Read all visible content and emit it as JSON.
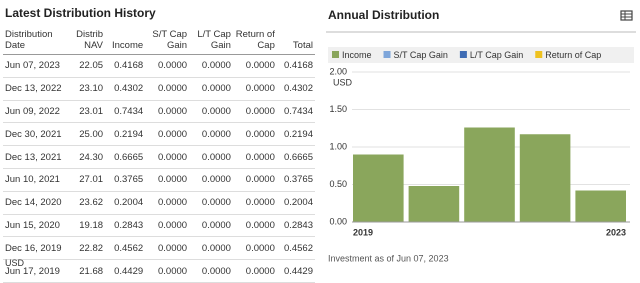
{
  "table": {
    "title": "Latest Distribution History",
    "headers": [
      "Distribution Date",
      "Distrib NAV",
      "Income",
      "S/T Cap Gain",
      "L/T Cap Gain",
      "Return of Cap",
      "Total"
    ],
    "rows": [
      [
        "Jun 07, 2023",
        "22.05",
        "0.4168",
        "0.0000",
        "0.0000",
        "0.0000",
        "0.4168"
      ],
      [
        "Dec 13, 2022",
        "23.10",
        "0.4302",
        "0.0000",
        "0.0000",
        "0.0000",
        "0.4302"
      ],
      [
        "Jun 09, 2022",
        "23.01",
        "0.7434",
        "0.0000",
        "0.0000",
        "0.0000",
        "0.7434"
      ],
      [
        "Dec 30, 2021",
        "25.00",
        "0.2194",
        "0.0000",
        "0.0000",
        "0.0000",
        "0.2194"
      ],
      [
        "Dec 13, 2021",
        "24.30",
        "0.6665",
        "0.0000",
        "0.0000",
        "0.0000",
        "0.6665"
      ],
      [
        "Jun 10, 2021",
        "27.01",
        "0.3765",
        "0.0000",
        "0.0000",
        "0.0000",
        "0.3765"
      ],
      [
        "Dec 14, 2020",
        "23.62",
        "0.2004",
        "0.0000",
        "0.0000",
        "0.0000",
        "0.2004"
      ],
      [
        "Jun 15, 2020",
        "19.18",
        "0.2843",
        "0.0000",
        "0.0000",
        "0.0000",
        "0.2843"
      ],
      [
        "Dec 16, 2019",
        "22.82",
        "0.4562",
        "0.0000",
        "0.0000",
        "0.0000",
        "0.4562"
      ],
      [
        "Jun 17, 2019",
        "21.68",
        "0.4429",
        "0.0000",
        "0.0000",
        "0.0000",
        "0.4429"
      ]
    ],
    "footer": "USD"
  },
  "chart_data": {
    "type": "bar",
    "stacked": true,
    "title": "Annual Distribution",
    "y_label": "USD",
    "categories": [
      "2019",
      null,
      null,
      null,
      "2023"
    ],
    "series": [
      {
        "name": "Income",
        "color": "#8aa65c",
        "values": [
          0.9,
          0.48,
          1.26,
          1.17,
          0.42
        ]
      },
      {
        "name": "S/T Cap Gain",
        "color": "#7ea6da",
        "values": [
          0,
          0,
          0,
          0,
          0
        ]
      },
      {
        "name": "L/T Cap Gain",
        "color": "#3f6cb4",
        "values": [
          0,
          0,
          0,
          0,
          0
        ]
      },
      {
        "name": "Return of Cap",
        "color": "#efc21f",
        "values": [
          0,
          0,
          0,
          0,
          0
        ]
      }
    ],
    "ylim": [
      0,
      2
    ],
    "yticks": [
      {
        "value": 0,
        "label": "0.00"
      },
      {
        "value": 0.5,
        "label": "0.50"
      },
      {
        "value": 1,
        "label": "1.00"
      },
      {
        "value": 1.5,
        "label": "1.50"
      },
      {
        "value": 2,
        "label": "2.00"
      }
    ],
    "grid": true,
    "note": "Investment as of Jun 07, 2023"
  }
}
